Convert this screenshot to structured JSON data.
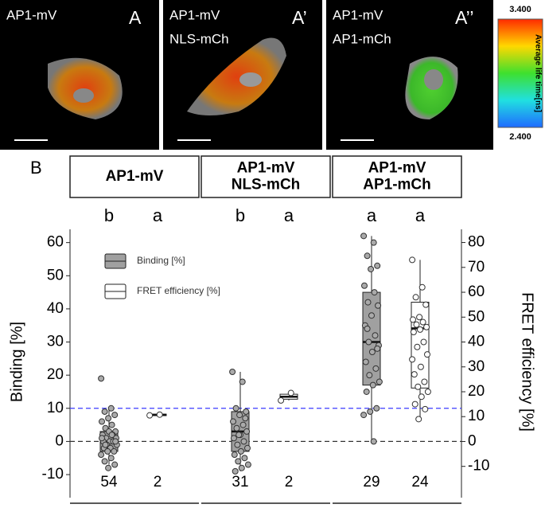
{
  "panels": [
    {
      "label": "A",
      "lines": [
        "AP1-mV"
      ]
    },
    {
      "label": "A’",
      "lines": [
        "AP1-mV",
        "NLS-mCh"
      ]
    },
    {
      "label": "A’’",
      "lines": [
        "AP1-mV",
        "AP1-mCh"
      ]
    }
  ],
  "colorbar": {
    "title": "Average life time[ns]",
    "max": "3.400",
    "min": "2.400"
  },
  "chart_data": {
    "type": "box",
    "panel_label": "B",
    "ylabel": "Binding [%]",
    "y2label": "FRET efficiency [%]",
    "ylim": [
      -16,
      64
    ],
    "yticks": [
      -10,
      0,
      10,
      20,
      30,
      40,
      50,
      60
    ],
    "y2lim": [
      -21.3,
      85.3
    ],
    "y2ticks": [
      -10,
      0,
      10,
      20,
      30,
      40,
      50,
      60,
      70,
      80
    ],
    "hlines": [
      {
        "value": 10,
        "color": "#3b3bff"
      },
      {
        "value": 0,
        "color": "#333333"
      }
    ],
    "series": [
      {
        "name": "Binding [%]",
        "color": "#a0a0a0",
        "axis": "y"
      },
      {
        "name": "FRET efficiency [%]",
        "color": "#ffffff",
        "axis": "y2"
      }
    ],
    "facets": [
      {
        "title": [
          "AP1-mV"
        ],
        "boxes": [
          {
            "letter": "b",
            "n": 54,
            "whislo": -7,
            "q1": -3,
            "med": 0,
            "q3": 3,
            "whishi": 10,
            "points": [
              19,
              10,
              9,
              8,
              7,
              6,
              5,
              4,
              3,
              3,
              2,
              2,
              1,
              1,
              0,
              0,
              0,
              -1,
              -1,
              -2,
              -2,
              -3,
              -3,
              -4,
              -5,
              -6,
              -7,
              -8,
              1,
              2,
              -1,
              0
            ]
          },
          {
            "letter": "a",
            "n": 2,
            "whislo": 10.3,
            "q1": 10.4,
            "med": 10.7,
            "q3": 11,
            "whishi": 11,
            "points": [
              10.5,
              10.8
            ]
          }
        ]
      },
      {
        "title": [
          "AP1-mV",
          "NLS-mCh"
        ],
        "boxes": [
          {
            "letter": "b",
            "n": 31,
            "whislo": -9,
            "q1": -3,
            "med": 3,
            "q3": 9,
            "whishi": 21,
            "points": [
              21,
              18,
              10,
              9,
              8,
              6,
              5,
              4,
              3,
              2,
              1,
              0,
              -1,
              -2,
              -3,
              -4,
              -5,
              -6,
              -7,
              -8,
              -9,
              7,
              2
            ]
          },
          {
            "letter": "a",
            "n": 2,
            "whislo": 16.5,
            "q1": 17,
            "med": 18,
            "q3": 19,
            "whishi": 19.5,
            "points": [
              16.5,
              19.5
            ]
          }
        ]
      },
      {
        "title": [
          "AP1-mV",
          "AP1-mCh"
        ],
        "boxes": [
          {
            "letter": "a",
            "n": 29,
            "whislo": 0,
            "q1": 17,
            "med": 30,
            "q3": 45,
            "whishi": 62,
            "points": [
              62,
              60,
              56,
              53,
              52,
              47,
              45,
              42,
              41,
              38,
              35,
              32,
              30,
              29,
              27,
              24,
              22,
              20,
              18,
              17,
              15,
              10,
              9,
              8,
              0,
              34,
              28
            ]
          },
          {
            "letter": "a",
            "n": 24,
            "whislo": 9,
            "q1": 21.5,
            "med": 45.5,
            "q3": 56,
            "whishi": 73,
            "points": [
              73,
              62,
              58,
              55,
              50,
              49,
              48,
              47,
              46,
              45,
              44,
              40,
              38,
              35,
              30,
              27,
              24,
              22,
              20,
              18,
              15,
              13,
              9,
              33
            ]
          }
        ]
      }
    ]
  }
}
